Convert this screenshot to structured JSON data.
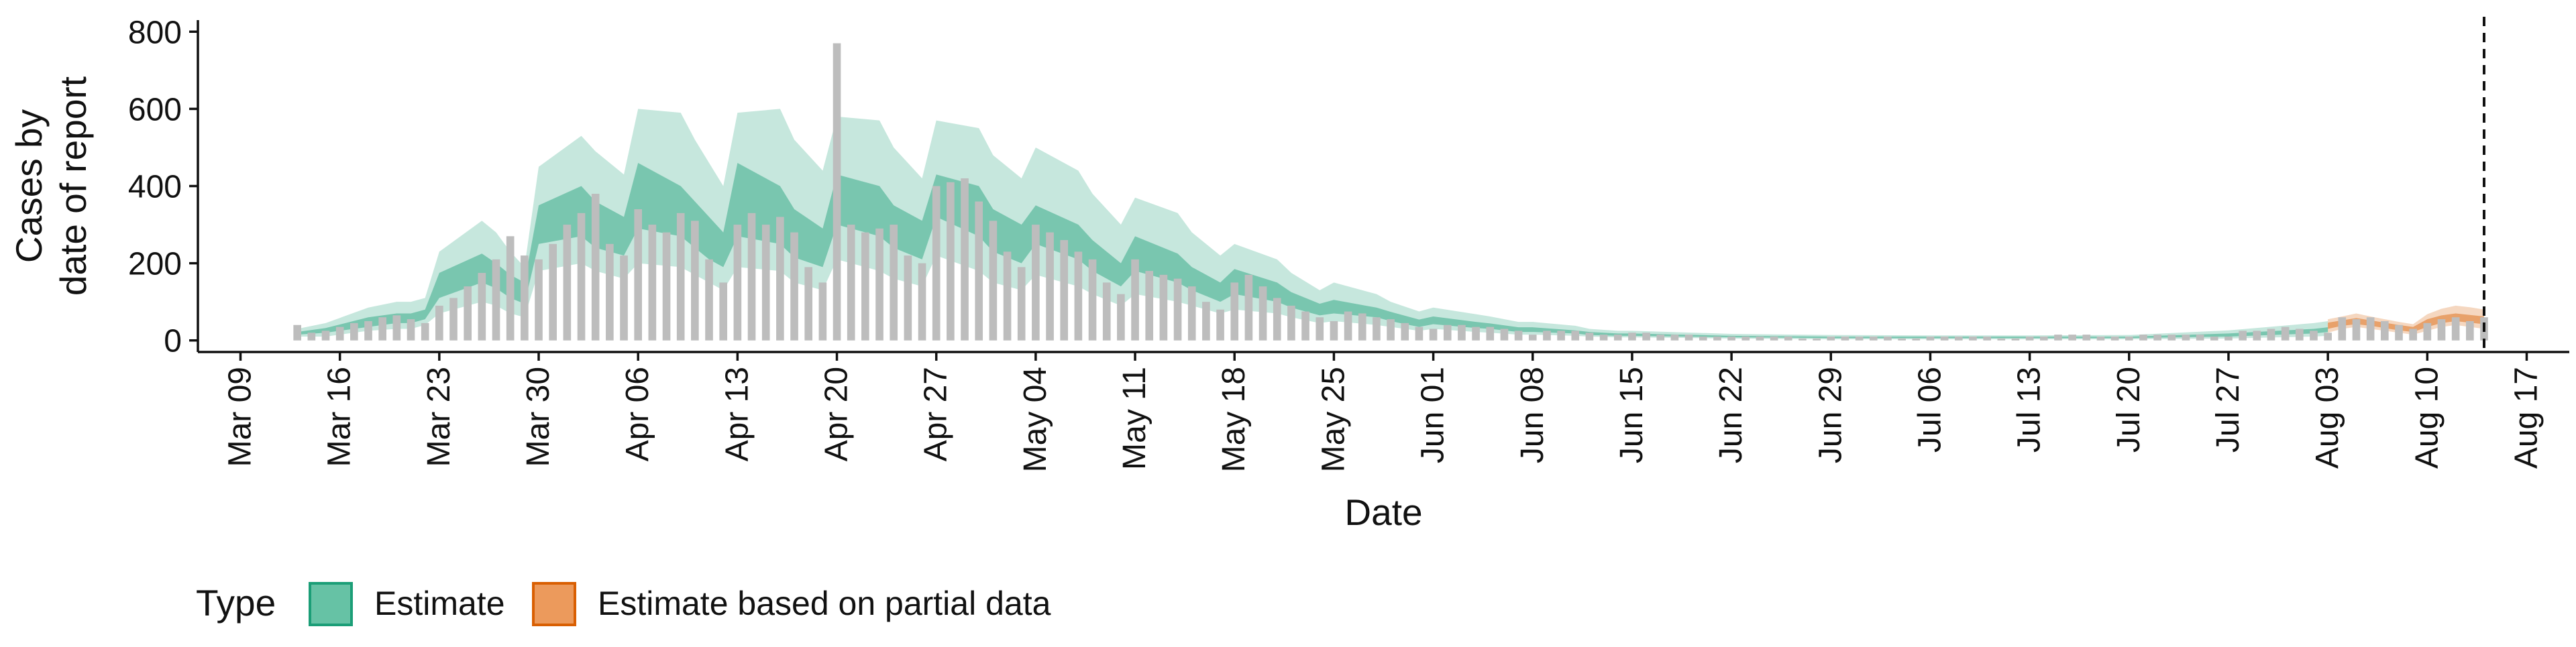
{
  "chart_data": {
    "type": "bar",
    "title": "",
    "xlabel": "Date",
    "ylabel_lines": [
      "Cases by",
      "date of report"
    ],
    "ylim": [
      -30,
      830
    ],
    "y_ticks": [
      0,
      200,
      400,
      600,
      800
    ],
    "x_domain": [
      "2020-03-06",
      "2020-08-20"
    ],
    "x_ticks": [
      {
        "date": "2020-03-09",
        "label": "Mar 09"
      },
      {
        "date": "2020-03-16",
        "label": "Mar 16"
      },
      {
        "date": "2020-03-23",
        "label": "Mar 23"
      },
      {
        "date": "2020-03-30",
        "label": "Mar 30"
      },
      {
        "date": "2020-04-06",
        "label": "Apr 06"
      },
      {
        "date": "2020-04-13",
        "label": "Apr 13"
      },
      {
        "date": "2020-04-20",
        "label": "Apr 20"
      },
      {
        "date": "2020-04-27",
        "label": "Apr 27"
      },
      {
        "date": "2020-05-04",
        "label": "May 04"
      },
      {
        "date": "2020-05-11",
        "label": "May 11"
      },
      {
        "date": "2020-05-18",
        "label": "May 18"
      },
      {
        "date": "2020-05-25",
        "label": "May 25"
      },
      {
        "date": "2020-06-01",
        "label": "Jun 01"
      },
      {
        "date": "2020-06-08",
        "label": "Jun 08"
      },
      {
        "date": "2020-06-15",
        "label": "Jun 15"
      },
      {
        "date": "2020-06-22",
        "label": "Jun 22"
      },
      {
        "date": "2020-06-29",
        "label": "Jun 29"
      },
      {
        "date": "2020-07-06",
        "label": "Jul 06"
      },
      {
        "date": "2020-07-13",
        "label": "Jul 13"
      },
      {
        "date": "2020-07-20",
        "label": "Jul 20"
      },
      {
        "date": "2020-07-27",
        "label": "Jul 27"
      },
      {
        "date": "2020-08-03",
        "label": "Aug 03"
      },
      {
        "date": "2020-08-10",
        "label": "Aug 10"
      },
      {
        "date": "2020-08-17",
        "label": "Aug 17"
      }
    ],
    "reference_line": {
      "date": "2020-08-14",
      "style": "dashed"
    },
    "grid": false,
    "legend": {
      "title": "Type",
      "position": "bottom-left",
      "entries": [
        {
          "label": "Estimate",
          "fill": "#66c2a5",
          "stroke": "#1b9e77"
        },
        {
          "label": "Estimate based on partial data",
          "fill": "#ec9a5c",
          "stroke": "#d95f02"
        }
      ]
    },
    "colors": {
      "bars": "#bdbdbd",
      "estimate": "#1b9e77",
      "partial": "#d95f02"
    },
    "series": [
      {
        "name": "Reported cases",
        "kind": "bar",
        "x": [
          "2020-03-13",
          "2020-03-14",
          "2020-03-15",
          "2020-03-16",
          "2020-03-17",
          "2020-03-18",
          "2020-03-19",
          "2020-03-20",
          "2020-03-21",
          "2020-03-22",
          "2020-03-23",
          "2020-03-24",
          "2020-03-25",
          "2020-03-26",
          "2020-03-27",
          "2020-03-28",
          "2020-03-29",
          "2020-03-30",
          "2020-03-31",
          "2020-04-01",
          "2020-04-02",
          "2020-04-03",
          "2020-04-04",
          "2020-04-05",
          "2020-04-06",
          "2020-04-07",
          "2020-04-08",
          "2020-04-09",
          "2020-04-10",
          "2020-04-11",
          "2020-04-12",
          "2020-04-13",
          "2020-04-14",
          "2020-04-15",
          "2020-04-16",
          "2020-04-17",
          "2020-04-18",
          "2020-04-19",
          "2020-04-20",
          "2020-04-21",
          "2020-04-22",
          "2020-04-23",
          "2020-04-24",
          "2020-04-25",
          "2020-04-26",
          "2020-04-27",
          "2020-04-28",
          "2020-04-29",
          "2020-04-30",
          "2020-05-01",
          "2020-05-02",
          "2020-05-03",
          "2020-05-04",
          "2020-05-05",
          "2020-05-06",
          "2020-05-07",
          "2020-05-08",
          "2020-05-09",
          "2020-05-10",
          "2020-05-11",
          "2020-05-12",
          "2020-05-13",
          "2020-05-14",
          "2020-05-15",
          "2020-05-16",
          "2020-05-17",
          "2020-05-18",
          "2020-05-19",
          "2020-05-20",
          "2020-05-21",
          "2020-05-22",
          "2020-05-23",
          "2020-05-24",
          "2020-05-25",
          "2020-05-26",
          "2020-05-27",
          "2020-05-28",
          "2020-05-29",
          "2020-05-30",
          "2020-05-31",
          "2020-06-01",
          "2020-06-02",
          "2020-06-03",
          "2020-06-04",
          "2020-06-05",
          "2020-06-06",
          "2020-06-07",
          "2020-06-08",
          "2020-06-09",
          "2020-06-10",
          "2020-06-11",
          "2020-06-12",
          "2020-06-13",
          "2020-06-14",
          "2020-06-15",
          "2020-06-16",
          "2020-06-17",
          "2020-06-18",
          "2020-06-19",
          "2020-06-20",
          "2020-06-21",
          "2020-06-22",
          "2020-06-23",
          "2020-06-24",
          "2020-06-25",
          "2020-06-26",
          "2020-06-27",
          "2020-06-28",
          "2020-06-29",
          "2020-06-30",
          "2020-07-01",
          "2020-07-02",
          "2020-07-03",
          "2020-07-04",
          "2020-07-05",
          "2020-07-06",
          "2020-07-07",
          "2020-07-08",
          "2020-07-09",
          "2020-07-10",
          "2020-07-11",
          "2020-07-12",
          "2020-07-13",
          "2020-07-14",
          "2020-07-15",
          "2020-07-16",
          "2020-07-17",
          "2020-07-18",
          "2020-07-19",
          "2020-07-20",
          "2020-07-21",
          "2020-07-22",
          "2020-07-23",
          "2020-07-24",
          "2020-07-25",
          "2020-07-26",
          "2020-07-27",
          "2020-07-28",
          "2020-07-29",
          "2020-07-30",
          "2020-07-31",
          "2020-08-01",
          "2020-08-02",
          "2020-08-03",
          "2020-08-04",
          "2020-08-05",
          "2020-08-06",
          "2020-08-07",
          "2020-08-08",
          "2020-08-09",
          "2020-08-10",
          "2020-08-11",
          "2020-08-12",
          "2020-08-13",
          "2020-08-14"
        ],
        "values": [
          40,
          20,
          25,
          35,
          45,
          50,
          60,
          65,
          55,
          45,
          90,
          110,
          140,
          175,
          210,
          270,
          220,
          210,
          250,
          300,
          330,
          380,
          250,
          220,
          340,
          300,
          280,
          330,
          310,
          210,
          150,
          300,
          330,
          300,
          320,
          280,
          190,
          150,
          770,
          300,
          280,
          290,
          300,
          220,
          200,
          400,
          410,
          420,
          360,
          310,
          230,
          190,
          300,
          280,
          260,
          230,
          210,
          150,
          120,
          210,
          180,
          170,
          160,
          140,
          100,
          80,
          150,
          170,
          140,
          110,
          90,
          75,
          60,
          50,
          75,
          70,
          60,
          55,
          45,
          35,
          30,
          40,
          40,
          35,
          35,
          30,
          25,
          15,
          25,
          25,
          25,
          20,
          15,
          15,
          20,
          20,
          15,
          15,
          15,
          10,
          10,
          10,
          10,
          10,
          10,
          10,
          5,
          5,
          10,
          10,
          10,
          10,
          10,
          5,
          5,
          10,
          10,
          10,
          10,
          10,
          5,
          5,
          10,
          10,
          15,
          15,
          15,
          10,
          10,
          10,
          15,
          15,
          15,
          15,
          15,
          10,
          10,
          25,
          25,
          30,
          35,
          30,
          25,
          20,
          60,
          55,
          60,
          50,
          40,
          30,
          45,
          55,
          60,
          50,
          60
        ]
      },
      {
        "name": "Estimate",
        "kind": "ribbon",
        "x": [
          "2020-03-13",
          "2020-03-15",
          "2020-03-18",
          "2020-03-20",
          "2020-03-21",
          "2020-03-22",
          "2020-03-23",
          "2020-03-26",
          "2020-03-27",
          "2020-03-28",
          "2020-03-29",
          "2020-03-30",
          "2020-04-02",
          "2020-04-03",
          "2020-04-05",
          "2020-04-06",
          "2020-04-09",
          "2020-04-10",
          "2020-04-11",
          "2020-04-12",
          "2020-04-13",
          "2020-04-16",
          "2020-04-17",
          "2020-04-19",
          "2020-04-20",
          "2020-04-23",
          "2020-04-24",
          "2020-04-26",
          "2020-04-27",
          "2020-04-30",
          "2020-05-01",
          "2020-05-03",
          "2020-05-04",
          "2020-05-07",
          "2020-05-08",
          "2020-05-10",
          "2020-05-11",
          "2020-05-14",
          "2020-05-15",
          "2020-05-17",
          "2020-05-18",
          "2020-05-21",
          "2020-05-22",
          "2020-05-24",
          "2020-05-25",
          "2020-05-28",
          "2020-05-29",
          "2020-05-31",
          "2020-06-01",
          "2020-06-04",
          "2020-06-05",
          "2020-06-07",
          "2020-06-08",
          "2020-06-11",
          "2020-06-12",
          "2020-06-14",
          "2020-06-15",
          "2020-06-22",
          "2020-06-29",
          "2020-07-06",
          "2020-07-13",
          "2020-07-20",
          "2020-07-27",
          "2020-08-02",
          "2020-08-03"
        ],
        "lower_90": [
          10,
          10,
          25,
          30,
          30,
          40,
          70,
          100,
          90,
          70,
          60,
          180,
          200,
          180,
          160,
          200,
          190,
          170,
          150,
          130,
          190,
          180,
          150,
          130,
          210,
          180,
          160,
          140,
          220,
          180,
          150,
          130,
          170,
          140,
          120,
          90,
          120,
          100,
          90,
          70,
          80,
          70,
          60,
          45,
          50,
          40,
          35,
          25,
          30,
          22,
          20,
          15,
          15,
          12,
          10,
          8,
          8,
          5,
          3,
          3,
          3,
          3,
          5,
          10,
          12
        ],
        "lower_50": [
          15,
          20,
          35,
          45,
          45,
          55,
          110,
          150,
          135,
          110,
          95,
          250,
          270,
          240,
          220,
          290,
          270,
          240,
          210,
          190,
          270,
          250,
          215,
          190,
          300,
          270,
          240,
          210,
          320,
          270,
          230,
          200,
          250,
          210,
          180,
          140,
          180,
          150,
          130,
          100,
          120,
          100,
          85,
          65,
          70,
          60,
          50,
          35,
          42,
          32,
          30,
          22,
          22,
          18,
          14,
          12,
          12,
          8,
          6,
          6,
          6,
          6,
          10,
          18,
          22
        ],
        "median": [
          18,
          25,
          45,
          55,
          55,
          65,
          140,
          185,
          165,
          140,
          120,
          300,
          330,
          290,
          260,
          360,
          330,
          290,
          260,
          230,
          330,
          310,
          270,
          230,
          360,
          330,
          290,
          260,
          380,
          330,
          280,
          250,
          300,
          255,
          220,
          170,
          220,
          185,
          160,
          125,
          150,
          125,
          105,
          80,
          88,
          72,
          62,
          45,
          52,
          40,
          36,
          28,
          28,
          22,
          18,
          15,
          15,
          10,
          8,
          8,
          8,
          8,
          14,
          24,
          28
        ],
        "upper_50": [
          22,
          32,
          60,
          70,
          70,
          80,
          175,
          225,
          200,
          170,
          150,
          350,
          400,
          360,
          320,
          460,
          400,
          360,
          320,
          280,
          460,
          400,
          340,
          290,
          430,
          400,
          350,
          310,
          430,
          400,
          340,
          300,
          350,
          300,
          260,
          200,
          270,
          225,
          190,
          150,
          185,
          150,
          125,
          95,
          105,
          85,
          74,
          54,
          62,
          48,
          44,
          34,
          34,
          26,
          22,
          18,
          18,
          12,
          10,
          10,
          10,
          10,
          18,
          30,
          34
        ],
        "upper_90": [
          30,
          45,
          85,
          100,
          100,
          110,
          230,
          310,
          280,
          230,
          190,
          450,
          530,
          490,
          430,
          600,
          590,
          520,
          460,
          400,
          590,
          600,
          520,
          440,
          580,
          570,
          500,
          420,
          570,
          550,
          480,
          420,
          500,
          440,
          380,
          300,
          370,
          330,
          280,
          220,
          250,
          210,
          175,
          130,
          150,
          120,
          100,
          75,
          85,
          68,
          62,
          48,
          48,
          38,
          30,
          25,
          25,
          17,
          14,
          13,
          13,
          14,
          26,
          45,
          50
        ]
      },
      {
        "name": "Estimate based on partial data",
        "kind": "ribbon",
        "x": [
          "2020-08-03",
          "2020-08-04",
          "2020-08-05",
          "2020-08-06",
          "2020-08-07",
          "2020-08-08",
          "2020-08-09",
          "2020-08-10",
          "2020-08-11",
          "2020-08-12",
          "2020-08-13",
          "2020-08-14"
        ],
        "lower_90": [
          20,
          30,
          35,
          30,
          25,
          20,
          15,
          25,
          35,
          40,
          35,
          30
        ],
        "lower_50": [
          30,
          38,
          42,
          38,
          32,
          26,
          22,
          35,
          45,
          50,
          46,
          42
        ],
        "median": [
          38,
          45,
          50,
          45,
          40,
          33,
          28,
          45,
          55,
          60,
          56,
          52
        ],
        "upper_50": [
          46,
          52,
          58,
          52,
          46,
          40,
          35,
          55,
          65,
          70,
          66,
          62
        ],
        "upper_90": [
          55,
          62,
          70,
          62,
          55,
          48,
          42,
          68,
          82,
          90,
          86,
          80
        ]
      }
    ]
  }
}
